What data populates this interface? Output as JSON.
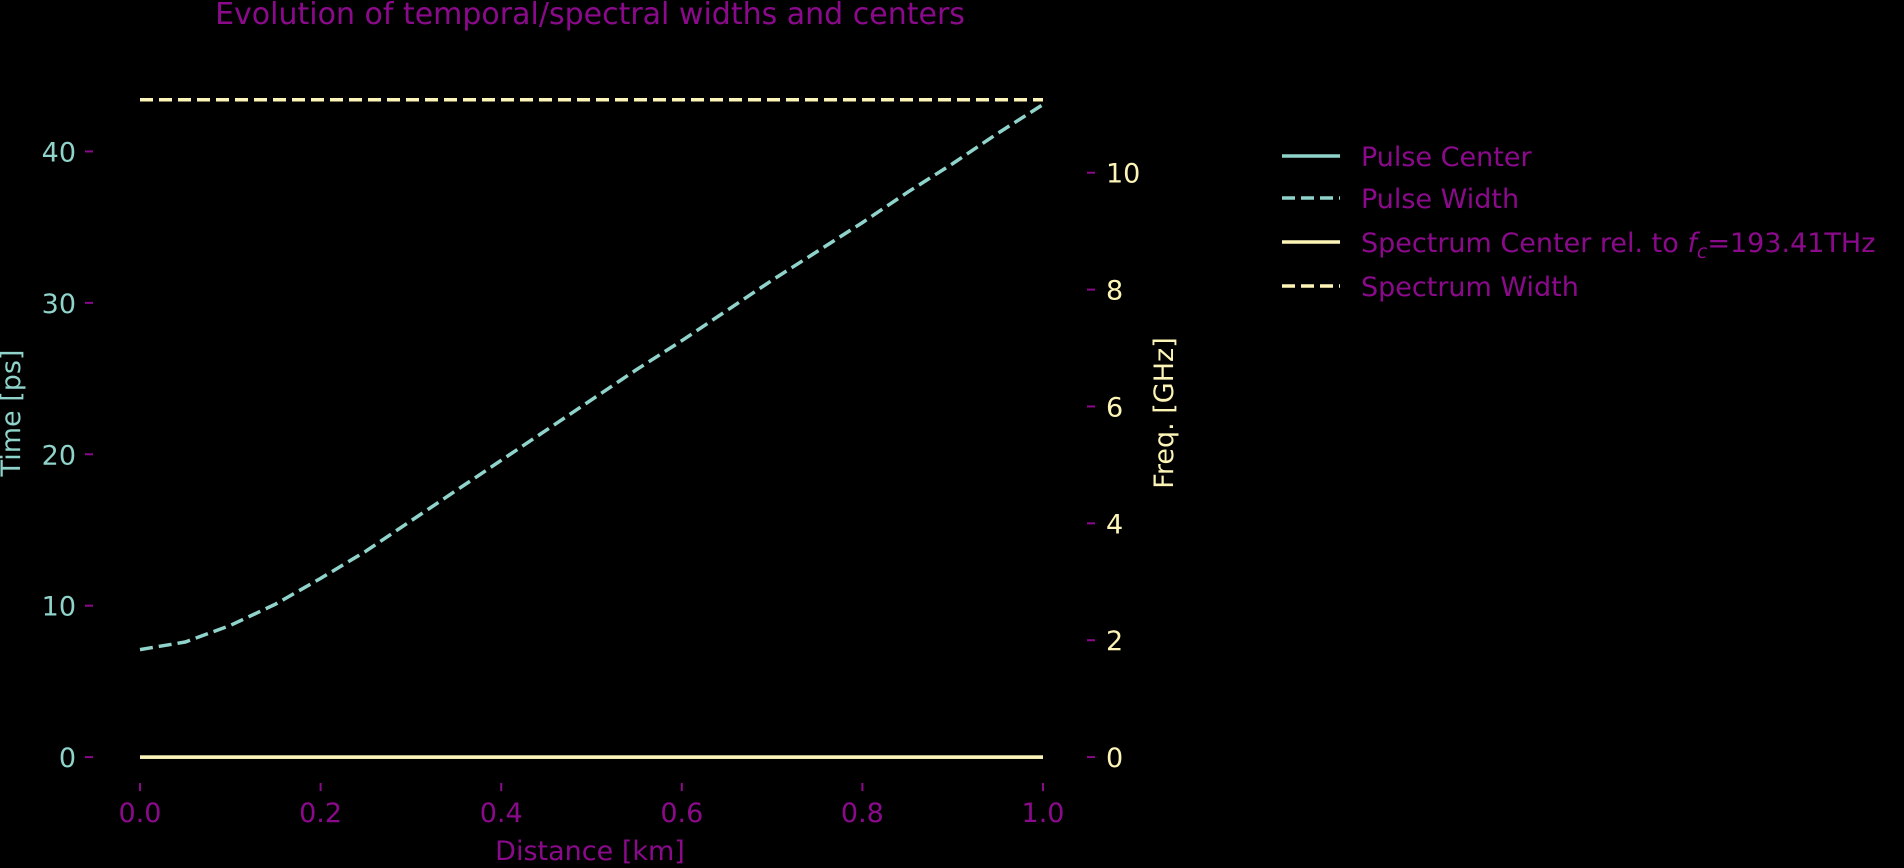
{
  "colors": {
    "background": "#000000",
    "title": "#8b0a8b",
    "time_axis": "#8fd3cb",
    "freq_axis": "#fdf5b7",
    "x_axis": "#8b0a8b",
    "tick_marks": "#8b0a8b",
    "legend_text": "#8b0a8b"
  },
  "chart_data": {
    "type": "line",
    "title": "Evolution of temporal/spectral widths and centers",
    "xlabel": "Distance [km]",
    "ylabel_left": "Time [ps]",
    "ylabel_right": "Freq. [GHz]",
    "xlim": [
      0.0,
      1.0
    ],
    "ylim_left": [
      -2.7,
      46.7
    ],
    "ylim_right": [
      -0.7,
      12.1
    ],
    "x_ticks": [
      "0.0",
      "0.2",
      "0.4",
      "0.6",
      "0.8",
      "1.0"
    ],
    "y_left_ticks": [
      "0",
      "10",
      "20",
      "30",
      "40"
    ],
    "y_right_ticks": [
      "0",
      "2",
      "4",
      "6",
      "8",
      "10"
    ],
    "legend_position": "right",
    "series": [
      {
        "name": "Pulse Center",
        "axis": "left",
        "style": "solid",
        "color": "#8fd3cb",
        "x": [
          0.0,
          1.0
        ],
        "y": [
          0.0,
          0.0
        ]
      },
      {
        "name": "Pulse Width",
        "axis": "left",
        "style": "dashed",
        "color": "#8fd3cb",
        "x": [
          0.0,
          0.05,
          0.1,
          0.15,
          0.2,
          0.25,
          0.3,
          0.35,
          0.4,
          0.45,
          0.5,
          0.55,
          0.6,
          0.65,
          0.7,
          0.75,
          0.8,
          0.85,
          0.9,
          0.95,
          1.0
        ],
        "y": [
          7.1,
          7.6,
          8.7,
          10.1,
          11.8,
          13.6,
          15.6,
          17.6,
          19.6,
          21.6,
          23.6,
          25.6,
          27.5,
          29.5,
          31.5,
          33.4,
          35.3,
          37.3,
          39.2,
          41.2,
          43.1
        ]
      },
      {
        "name": "Spectrum Center rel. to f_c=193.41THz",
        "axis": "right",
        "style": "solid",
        "color": "#fdf5b7",
        "x": [
          0.0,
          1.0
        ],
        "y": [
          0.0,
          0.0
        ]
      },
      {
        "name": "Spectrum Width",
        "axis": "right",
        "style": "dashed",
        "color": "#fdf5b7",
        "x": [
          0.0,
          1.0
        ],
        "y": [
          11.25,
          11.25
        ]
      }
    ]
  },
  "legend": {
    "items": [
      {
        "label": "Pulse Center",
        "color": "#8fd3cb",
        "style": "solid"
      },
      {
        "label": "Pulse Width",
        "color": "#8fd3cb",
        "style": "dashed"
      },
      {
        "label_prefix": "Spectrum Center rel. to ",
        "label_symbol": "f",
        "label_subscript": "c",
        "label_suffix": "=193.41THz",
        "color": "#fdf5b7",
        "style": "solid"
      },
      {
        "label": "Spectrum Width",
        "color": "#fdf5b7",
        "style": "dashed"
      }
    ]
  }
}
